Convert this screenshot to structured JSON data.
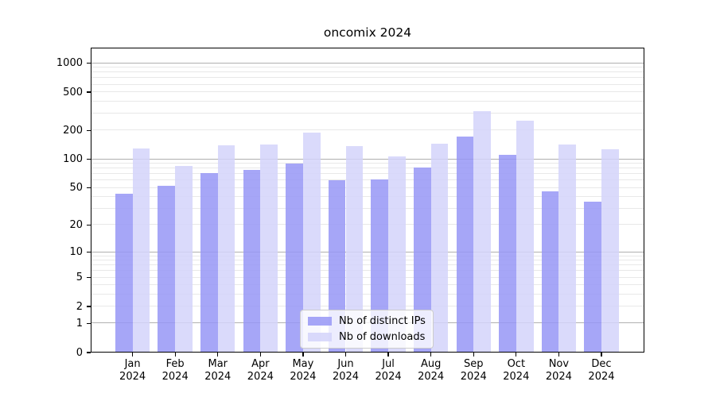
{
  "chart_data": {
    "type": "bar",
    "title": "oncomix 2024",
    "x_labels": [
      {
        "line1": "Jan",
        "line2": "2024"
      },
      {
        "line1": "Feb",
        "line2": "2024"
      },
      {
        "line1": "Mar",
        "line2": "2024"
      },
      {
        "line1": "Apr",
        "line2": "2024"
      },
      {
        "line1": "May",
        "line2": "2024"
      },
      {
        "line1": "Jun",
        "line2": "2024"
      },
      {
        "line1": "Jul",
        "line2": "2024"
      },
      {
        "line1": "Aug",
        "line2": "2024"
      },
      {
        "line1": "Sep",
        "line2": "2024"
      },
      {
        "line1": "Oct",
        "line2": "2024"
      },
      {
        "line1": "Nov",
        "line2": "2024"
      },
      {
        "line1": "Dec",
        "line2": "2024"
      }
    ],
    "series": [
      {
        "name": "Nb of distinct IPs",
        "color": "rgba(150,150,246,0.85)",
        "values": [
          43,
          53,
          71,
          78,
          90,
          60,
          61,
          82,
          173,
          112,
          46,
          36
        ]
      },
      {
        "name": "Nb of downloads",
        "color": "rgba(211,211,250,0.85)",
        "values": [
          129,
          85,
          139,
          142,
          191,
          137,
          108,
          145,
          318,
          254,
          144,
          128
        ]
      }
    ],
    "y_ticks": [
      1000,
      500,
      200,
      100,
      50,
      20,
      10,
      5,
      2,
      1,
      0
    ],
    "y_scale": "log10(value+1)",
    "y_axis_max": 1450,
    "ylim": [
      0,
      1450
    ],
    "grid": true,
    "legend_position": "lower center",
    "colors": {
      "major_gridline": "#b0b0b0",
      "minor_gridline": "#e8e8e8",
      "axis": "#000000",
      "legend_border": "#cccccc"
    }
  }
}
